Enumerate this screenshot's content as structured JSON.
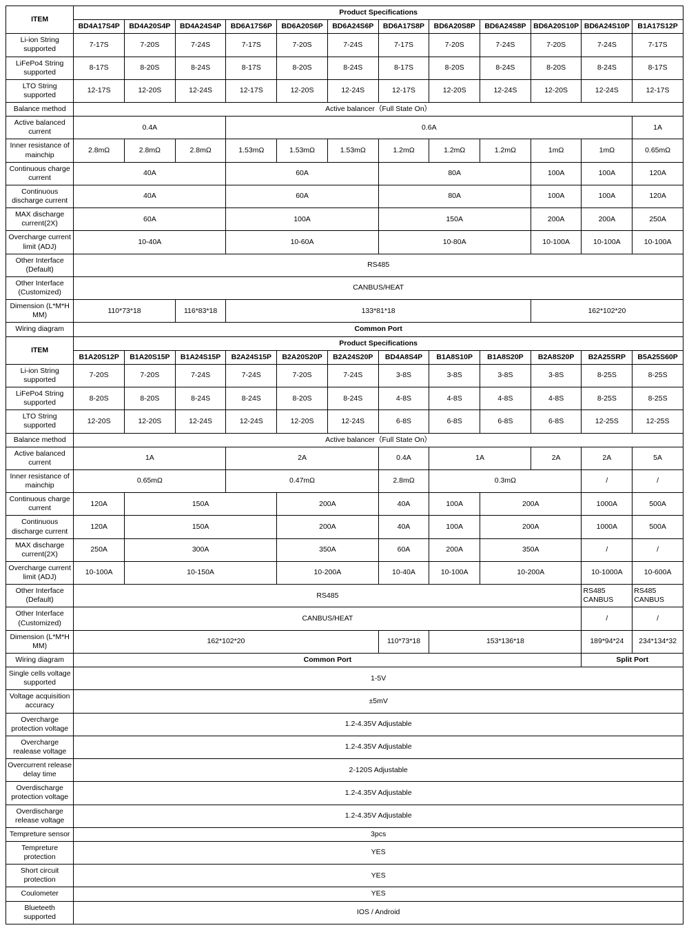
{
  "meta": {
    "type": "table",
    "background_color": "#ffffff",
    "border_color": "#000000",
    "text_color": "#000000",
    "font_family": "Arial, sans-serif",
    "font_size_pt": 8
  },
  "labels": {
    "item": "ITEM",
    "product_spec": "Product Specifications"
  },
  "rows1_header": [
    "BD4A17S4P",
    "BD4A20S4P",
    "BD4A24S4P",
    "BD6A17S6P",
    "BD6A20S6P",
    "BD6A24S6P",
    "BD6A17S8P",
    "BD6A20S8P",
    "BD6A24S8P",
    "BD6A20S10P",
    "BD6A24S10P",
    "B1A17S12P"
  ],
  "rows1": {
    "liion": {
      "label": "Li-ion String supported",
      "v": [
        "7-17S",
        "7-20S",
        "7-24S",
        "7-17S",
        "7-20S",
        "7-24S",
        "7-17S",
        "7-20S",
        "7-24S",
        "7-20S",
        "7-24S",
        "7-17S"
      ]
    },
    "lifepo4": {
      "label": "LiFePo4 String supported",
      "v": [
        "8-17S",
        "8-20S",
        "8-24S",
        "8-17S",
        "8-20S",
        "8-24S",
        "8-17S",
        "8-20S",
        "8-24S",
        "8-20S",
        "8-24S",
        "8-17S"
      ]
    },
    "lto": {
      "label": "LTO String supported",
      "v": [
        "12-17S",
        "12-20S",
        "12-24S",
        "12-17S",
        "12-20S",
        "12-24S",
        "12-17S",
        "12-20S",
        "12-24S",
        "12-20S",
        "12-24S",
        "12-17S"
      ]
    },
    "balance": {
      "label": "Balance method",
      "full": "Active balancer（Full State On）"
    },
    "active_cur": {
      "label": "Active balanced current",
      "spans": [
        {
          "c": 3,
          "v": "0.4A"
        },
        {
          "c": 8,
          "v": "0.6A"
        },
        {
          "c": 1,
          "v": "1A"
        }
      ]
    },
    "ir": {
      "label": "Inner resistance of mainchip",
      "v": [
        "2.8mΩ",
        "2.8mΩ",
        "2.8mΩ",
        "1.53mΩ",
        "1.53mΩ",
        "1.53mΩ",
        "1.2mΩ",
        "1.2mΩ",
        "1.2mΩ",
        "1mΩ",
        "1mΩ",
        "0.65mΩ"
      ]
    },
    "ccc": {
      "label": "Continuous charge current",
      "spans": [
        {
          "c": 3,
          "v": "40A"
        },
        {
          "c": 3,
          "v": "60A"
        },
        {
          "c": 3,
          "v": "80A"
        },
        {
          "c": 1,
          "v": "100A"
        },
        {
          "c": 1,
          "v": "100A"
        },
        {
          "c": 1,
          "v": "120A"
        }
      ]
    },
    "cdc": {
      "label": "Continuous discharge current",
      "spans": [
        {
          "c": 3,
          "v": "40A"
        },
        {
          "c": 3,
          "v": "60A"
        },
        {
          "c": 3,
          "v": "80A"
        },
        {
          "c": 1,
          "v": "100A"
        },
        {
          "c": 1,
          "v": "100A"
        },
        {
          "c": 1,
          "v": "120A"
        }
      ]
    },
    "maxd": {
      "label": "MAX discharge current(2X)",
      "spans": [
        {
          "c": 3,
          "v": "60A"
        },
        {
          "c": 3,
          "v": "100A"
        },
        {
          "c": 3,
          "v": "150A"
        },
        {
          "c": 1,
          "v": "200A"
        },
        {
          "c": 1,
          "v": "200A"
        },
        {
          "c": 1,
          "v": "250A"
        }
      ]
    },
    "occ": {
      "label": "Overcharge current limit (ADJ)",
      "spans": [
        {
          "c": 3,
          "v": "10-40A"
        },
        {
          "c": 3,
          "v": "10-60A"
        },
        {
          "c": 3,
          "v": "10-80A"
        },
        {
          "c": 1,
          "v": "10-100A"
        },
        {
          "c": 1,
          "v": "10-100A"
        },
        {
          "c": 1,
          "v": "10-100A"
        }
      ]
    },
    "oif_def": {
      "label": "Other Interface (Default)",
      "full": "RS485"
    },
    "oif_cust": {
      "label": "Other Interface (Customized)",
      "full": "CANBUS/HEAT"
    },
    "dim": {
      "label": "Dimension (L*M*H MM)",
      "spans": [
        {
          "c": 2,
          "v": "110*73*18"
        },
        {
          "c": 1,
          "v": "116*83*18"
        },
        {
          "c": 6,
          "v": "133*81*18"
        },
        {
          "c": 3,
          "v": "162*102*20"
        }
      ]
    },
    "wiring": {
      "label": "Wiring diagram",
      "full": "Common Port",
      "bold": true
    }
  },
  "rows2_header": [
    "B1A20S12P",
    "B1A20S15P",
    "B1A24S15P",
    "B2A24S15P",
    "B2A20S20P",
    "B2A24S20P",
    "BD4A8S4P",
    "B1A8S10P",
    "B1A8S20P",
    "B2A8S20P",
    "B2A25SRP",
    "B5A25S60P"
  ],
  "rows2": {
    "liion": {
      "label": "Li-ion String supported",
      "v": [
        "7-20S",
        "7-20S",
        "7-24S",
        "7-24S",
        "7-20S",
        "7-24S",
        "3-8S",
        "3-8S",
        "3-8S",
        "3-8S",
        "8-25S",
        "8-25S"
      ]
    },
    "lifepo4": {
      "label": "LiFePo4 String supported",
      "v": [
        "8-20S",
        "8-20S",
        "8-24S",
        "8-24S",
        "8-20S",
        "8-24S",
        "4-8S",
        "4-8S",
        "4-8S",
        "4-8S",
        "8-25S",
        "8-25S"
      ]
    },
    "lto": {
      "label": "LTO String supported",
      "v": [
        "12-20S",
        "12-20S",
        "12-24S",
        "12-24S",
        "12-20S",
        "12-24S",
        "6-8S",
        "6-8S",
        "6-8S",
        "6-8S",
        "12-25S",
        "12-25S"
      ]
    },
    "balance": {
      "label": "Balance method",
      "full": "Active balancer（Full State On）"
    },
    "active_cur": {
      "label": "Active balanced current",
      "spans": [
        {
          "c": 3,
          "v": "1A"
        },
        {
          "c": 3,
          "v": "2A"
        },
        {
          "c": 1,
          "v": "0.4A"
        },
        {
          "c": 2,
          "v": "1A"
        },
        {
          "c": 1,
          "v": "2A"
        },
        {
          "c": 1,
          "v": "2A"
        },
        {
          "c": 1,
          "v": "5A"
        }
      ]
    },
    "ir": {
      "label": "Inner resistance of mainchip",
      "spans": [
        {
          "c": 3,
          "v": "0.65mΩ"
        },
        {
          "c": 3,
          "v": "0.47mΩ"
        },
        {
          "c": 1,
          "v": "2.8mΩ"
        },
        {
          "c": 3,
          "v": "0.3mΩ"
        },
        {
          "c": 1,
          "v": "/"
        },
        {
          "c": 1,
          "v": "/"
        }
      ]
    },
    "ccc": {
      "label": "Continuous charge current",
      "spans": [
        {
          "c": 1,
          "v": "120A"
        },
        {
          "c": 3,
          "v": "150A"
        },
        {
          "c": 2,
          "v": "200A"
        },
        {
          "c": 1,
          "v": "40A"
        },
        {
          "c": 1,
          "v": "100A"
        },
        {
          "c": 2,
          "v": "200A"
        },
        {
          "c": 1,
          "v": "1000A"
        },
        {
          "c": 1,
          "v": "500A"
        }
      ]
    },
    "cdc": {
      "label": "Continuous discharge current",
      "spans": [
        {
          "c": 1,
          "v": "120A"
        },
        {
          "c": 3,
          "v": "150A"
        },
        {
          "c": 2,
          "v": "200A"
        },
        {
          "c": 1,
          "v": "40A"
        },
        {
          "c": 1,
          "v": "100A"
        },
        {
          "c": 2,
          "v": "200A"
        },
        {
          "c": 1,
          "v": "1000A"
        },
        {
          "c": 1,
          "v": "500A"
        }
      ]
    },
    "maxd": {
      "label": "MAX discharge current(2X)",
      "spans": [
        {
          "c": 1,
          "v": "250A"
        },
        {
          "c": 3,
          "v": "300A"
        },
        {
          "c": 2,
          "v": "350A"
        },
        {
          "c": 1,
          "v": "60A"
        },
        {
          "c": 1,
          "v": "200A"
        },
        {
          "c": 2,
          "v": "350A"
        },
        {
          "c": 1,
          "v": "/"
        },
        {
          "c": 1,
          "v": "/"
        }
      ]
    },
    "occ": {
      "label": "Overcharge current limit (ADJ)",
      "spans": [
        {
          "c": 1,
          "v": "10-100A"
        },
        {
          "c": 3,
          "v": "10-150A"
        },
        {
          "c": 2,
          "v": "10-200A"
        },
        {
          "c": 1,
          "v": "10-40A"
        },
        {
          "c": 1,
          "v": "10-100A"
        },
        {
          "c": 2,
          "v": "10-200A"
        },
        {
          "c": 1,
          "v": "10-1000A"
        },
        {
          "c": 1,
          "v": "10-600A"
        }
      ]
    },
    "oif_def": {
      "label": "Other Interface (Default)",
      "spans": [
        {
          "c": 10,
          "v": "RS485"
        },
        {
          "c": 1,
          "v": "RS485 CANBUS",
          "align": "left"
        },
        {
          "c": 1,
          "v": "RS485 CANBUS",
          "align": "left"
        }
      ]
    },
    "oif_cust": {
      "label": "Other Interface (Customized)",
      "spans": [
        {
          "c": 10,
          "v": "CANBUS/HEAT"
        },
        {
          "c": 1,
          "v": "/"
        },
        {
          "c": 1,
          "v": "/"
        }
      ]
    },
    "dim": {
      "label": "Dimension (L*M*H MM)",
      "spans": [
        {
          "c": 6,
          "v": "162*102*20"
        },
        {
          "c": 1,
          "v": "110*73*18"
        },
        {
          "c": 3,
          "v": "153*136*18"
        },
        {
          "c": 1,
          "v": "189*94*24"
        },
        {
          "c": 1,
          "v": "234*134*32"
        }
      ]
    },
    "wiring": {
      "label": "Wiring diagram",
      "spans": [
        {
          "c": 10,
          "v": "Common Port",
          "bold": true
        },
        {
          "c": 2,
          "v": "Split Port",
          "bold": true
        }
      ]
    }
  },
  "common_rows": [
    {
      "label": "Single cells voltage supported",
      "v": "1-5V"
    },
    {
      "label": "Voltage acquisition accuracy",
      "v": "±5mV"
    },
    {
      "label": "Overcharge protection voltage",
      "v": "1.2-4.35V Adjustable"
    },
    {
      "label": "Overcharge realease voltage",
      "v": "1.2-4.35V Adjustable"
    },
    {
      "label": "Overcurrent release delay time",
      "v": "2-120S Adjustable"
    },
    {
      "label": "Overdischarge protection voltage",
      "v": "1.2-4.35V Adjustable"
    },
    {
      "label": "Overdischarge release voltage",
      "v": "1.2-4.35V Adjustable"
    },
    {
      "label": "Tempreture sensor",
      "v": "3pcs"
    },
    {
      "label": "Tempreture protection",
      "v": "YES"
    },
    {
      "label": "Short circuit protection",
      "v": "YES"
    },
    {
      "label": "Coulometer",
      "v": "YES"
    },
    {
      "label": "Blueteeth supported",
      "v": "IOS / Android"
    }
  ]
}
